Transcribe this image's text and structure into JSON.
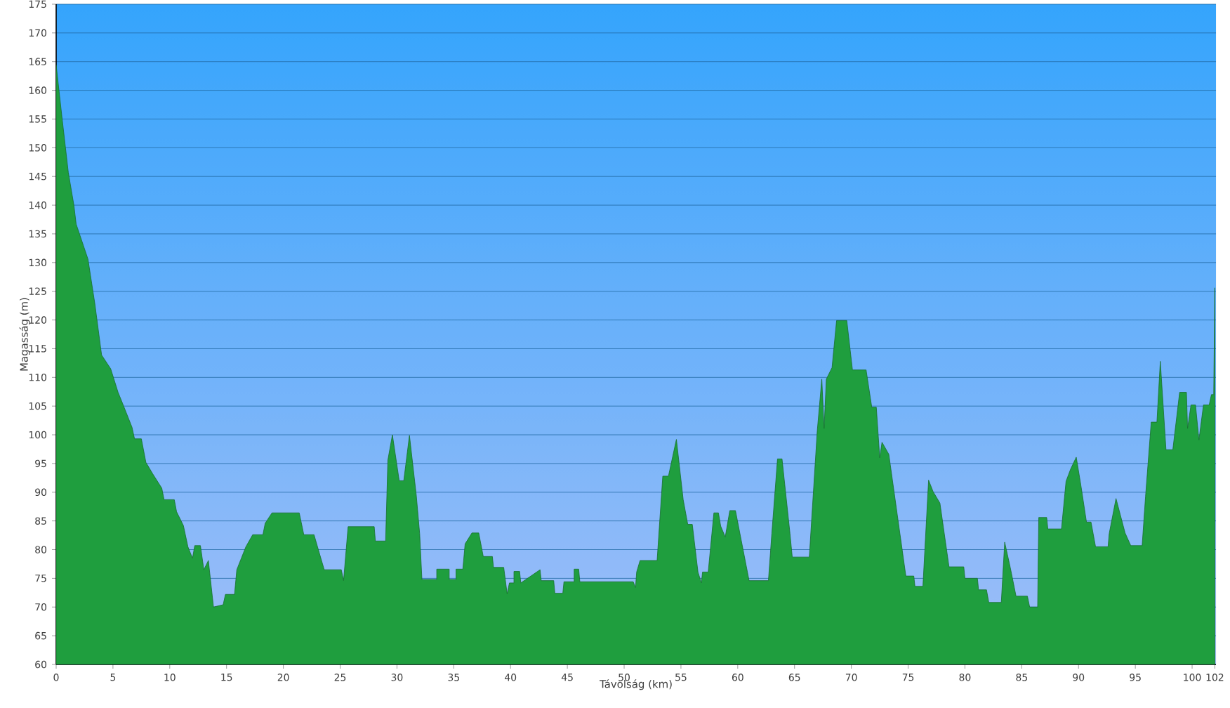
{
  "chart_data": {
    "type": "area",
    "xlabel": "Távolság (km)",
    "ylabel": "Magasság (m)",
    "color": "#1f9e3e",
    "grid": "y",
    "xlim": [
      0,
      102.1
    ],
    "ylim": [
      60,
      175
    ],
    "xticks": [
      0,
      5,
      10,
      15,
      20,
      25,
      30,
      35,
      40,
      45,
      50,
      55,
      60,
      65,
      70,
      75,
      80,
      85,
      90,
      95,
      100,
      102
    ],
    "yticks": [
      60,
      65,
      70,
      75,
      80,
      85,
      90,
      95,
      100,
      105,
      110,
      115,
      120,
      125,
      130,
      135,
      140,
      145,
      150,
      155,
      160,
      165,
      170,
      175
    ],
    "x": [
      0,
      0.5,
      1.07,
      1.56,
      1.76,
      2.17,
      2.8,
      3.4,
      4.0,
      4.8,
      5.45,
      5.86,
      6.68,
      6.9,
      7.5,
      7.9,
      8.5,
      9.3,
      9.5,
      10.4,
      10.6,
      11.2,
      11.6,
      12.0,
      12.2,
      12.7,
      13.0,
      13.4,
      13.85,
      14.7,
      14.9,
      15.7,
      15.9,
      16.3,
      16.7,
      17.3,
      18.2,
      18.4,
      19.0,
      21.4,
      21.8,
      22.7,
      23.3,
      23.6,
      25.1,
      25.3,
      25.7,
      28.0,
      28.1,
      29.0,
      29.2,
      29.6,
      30.2,
      30.6,
      31.1,
      31.7,
      32.0,
      32.2,
      33.5,
      33.5,
      34.6,
      34.6,
      35.2,
      35.2,
      35.8,
      36.0,
      36.6,
      37.2,
      37.6,
      38.4,
      38.5,
      39.4,
      39.7,
      39.9,
      40.3,
      40.3,
      40.8,
      40.9,
      42.6,
      42.7,
      43.8,
      43.9,
      44.6,
      44.7,
      45.6,
      45.6,
      46.0,
      46.1,
      50.8,
      51.0,
      51.1,
      51.4,
      52.9,
      53.4,
      53.9,
      54.6,
      55.2,
      55.6,
      56.0,
      56.5,
      56.8,
      56.9,
      57.4,
      57.9,
      58.3,
      58.5,
      58.9,
      59.3,
      59.8,
      60.4,
      61.0,
      62.7,
      63.0,
      63.5,
      63.9,
      64.6,
      64.8,
      65.4,
      66.3,
      67.0,
      67.4,
      67.6,
      67.8,
      68.3,
      68.7,
      69.6,
      70.1,
      71.3,
      71.8,
      72.2,
      72.5,
      72.7,
      73.3,
      74.8,
      75.5,
      75.6,
      76.3,
      76.8,
      77.2,
      77.8,
      78.6,
      79.9,
      80.0,
      81.1,
      81.2,
      81.9,
      82.1,
      83.2,
      83.5,
      84.0,
      84.5,
      85.5,
      85.7,
      86.4,
      86.5,
      87.2,
      87.3,
      88.5,
      88.9,
      89.3,
      89.8,
      90.2,
      90.7,
      91.1,
      91.5,
      92.6,
      92.7,
      93.3,
      94.1,
      94.6,
      95.6,
      95.9,
      96.4,
      96.9,
      97.2,
      97.7,
      98.3,
      98.9,
      99.5,
      99.6,
      99.9,
      100.3,
      100.6,
      101.0,
      101.5,
      101.7,
      101.9,
      102.0
    ],
    "values": [
      164.4,
      155.5,
      145.7,
      140,
      136.7,
      134.3,
      130.6,
      122.9,
      113.9,
      111.5,
      107.4,
      105.4,
      101.3,
      99.3,
      99.3,
      95.2,
      93.2,
      90.7,
      88.7,
      88.7,
      86.6,
      84.2,
      80.5,
      78.5,
      80.7,
      80.7,
      76.5,
      78.1,
      70,
      70.4,
      72.2,
      72.2,
      76.5,
      78.5,
      80.5,
      82.6,
      82.6,
      84.6,
      86.4,
      86.4,
      82.6,
      82.6,
      78.5,
      76.5,
      76.5,
      74.6,
      84,
      84,
      81.5,
      81.5,
      95.6,
      100,
      92,
      92,
      99.9,
      89.5,
      82.8,
      74.8,
      74.8,
      76.6,
      76.6,
      74.8,
      74.8,
      76.6,
      76.6,
      81,
      82.9,
      82.9,
      78.8,
      78.8,
      76.9,
      76.9,
      72.3,
      74.2,
      74.2,
      76.2,
      76.2,
      74.2,
      76.5,
      74.6,
      74.6,
      72.4,
      72.4,
      74.4,
      74.4,
      76.6,
      76.6,
      74.4,
      74.4,
      73.4,
      76.1,
      78.1,
      78.1,
      92.8,
      92.8,
      99.2,
      88.7,
      84.4,
      84.4,
      76.1,
      74.2,
      76.1,
      76.1,
      86.4,
      86.4,
      84.1,
      82.2,
      86.8,
      86.8,
      80.7,
      74.6,
      74.6,
      82.8,
      95.8,
      95.8,
      82.8,
      78.7,
      78.7,
      78.7,
      100.7,
      109.7,
      101.1,
      109.7,
      111.7,
      119.9,
      119.9,
      111.3,
      111.3,
      104.8,
      104.8,
      96,
      98.7,
      96.6,
      75.4,
      75.4,
      73.6,
      73.6,
      92.1,
      90.1,
      88.1,
      77,
      77,
      75,
      75,
      73,
      73,
      70.8,
      70.8,
      81.3,
      76.8,
      71.9,
      71.9,
      70,
      70,
      85.6,
      85.6,
      83.6,
      83.6,
      91.9,
      94,
      96.1,
      91.3,
      84.8,
      84.8,
      80.5,
      80.5,
      82.8,
      88.9,
      82.9,
      80.7,
      80.7,
      89.3,
      102.2,
      102.2,
      112.8,
      97.4,
      97.4,
      107.4,
      107.4,
      101.1,
      105.2,
      105.2,
      99.1,
      105.2,
      105.2,
      107,
      107,
      125.6
    ]
  }
}
